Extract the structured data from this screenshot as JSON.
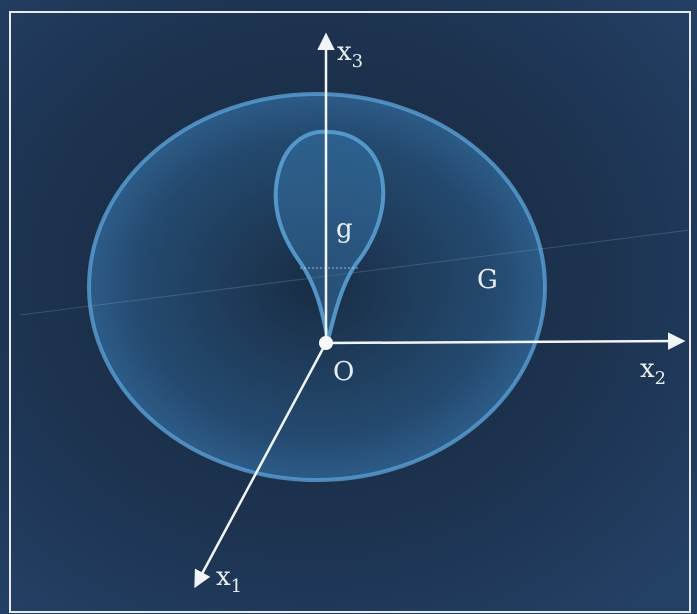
{
  "figure": {
    "labels": {
      "x3_axis": {
        "main": "x",
        "sub": "3"
      },
      "x2_axis": {
        "main": "x",
        "sub": "2"
      },
      "x1_axis": {
        "main": "x",
        "sub": "1"
      },
      "origin": "O",
      "inner_region": "g",
      "outer_region": "G"
    },
    "colors": {
      "background": "#1b2e46",
      "frame": "#e6ebf0",
      "axis": "#f2f5f8",
      "region_fill": "#3a7cb4",
      "region_edge": "#5a9fd3",
      "label": "#e9eef3"
    }
  }
}
